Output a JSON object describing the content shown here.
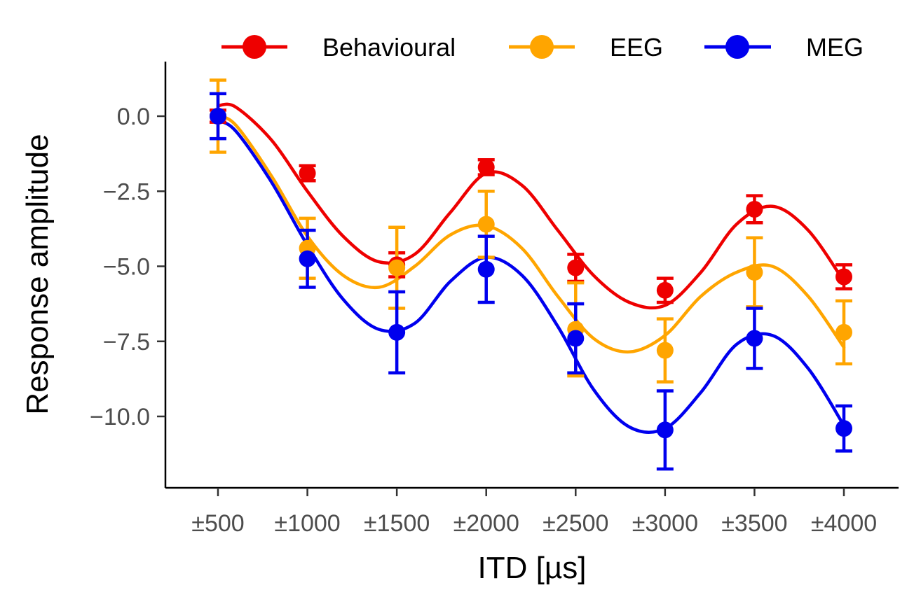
{
  "chart_data": {
    "type": "line",
    "title": "",
    "xlabel": "ITD [µs]",
    "ylabel": "Response amplitude",
    "categories": [
      "±500",
      "±1000",
      "±1500",
      "±2000",
      "±2500",
      "±3000",
      "±3500",
      "±4000"
    ],
    "x_values": [
      500,
      1000,
      1500,
      2000,
      2500,
      3000,
      3500,
      4000
    ],
    "xlim": [
      200,
      4300
    ],
    "ylim": [
      -12.3,
      1.8
    ],
    "yticks": [
      0,
      -2.5,
      -5,
      -7.5,
      -10
    ],
    "ytick_labels": [
      "0.0",
      "−2.5",
      "−5.0",
      "−7.5",
      "−10.0"
    ],
    "grid": false,
    "legend_position": "top",
    "series": [
      {
        "name": "Behavioural",
        "color": "#ee0000",
        "values": [
          0.0,
          -1.9,
          -4.95,
          -1.7,
          -5.05,
          -5.8,
          -3.1,
          -5.35
        ],
        "error": [
          0.2,
          0.25,
          0.4,
          0.25,
          0.45,
          0.4,
          0.45,
          0.4
        ]
      },
      {
        "name": "EEG",
        "color": "#ffa500",
        "values": [
          0.0,
          -4.4,
          -5.05,
          -3.6,
          -7.1,
          -7.8,
          -5.2,
          -7.2
        ],
        "error": [
          1.2,
          1.0,
          1.35,
          1.1,
          1.55,
          1.05,
          1.15,
          1.05
        ]
      },
      {
        "name": "MEG",
        "color": "#0000ee",
        "values": [
          0.0,
          -4.75,
          -7.2,
          -5.1,
          -7.4,
          -10.45,
          -7.4,
          -10.4
        ],
        "error": [
          0.75,
          0.95,
          1.35,
          1.1,
          1.15,
          1.3,
          1.0,
          0.75
        ]
      }
    ],
    "fit_curves": [
      {
        "name": "Behavioural",
        "color": "#ee0000",
        "points": [
          [
            500,
            0.35
          ],
          [
            600,
            0.3
          ],
          [
            800,
            -0.8
          ],
          [
            1000,
            -2.5
          ],
          [
            1200,
            -4.0
          ],
          [
            1400,
            -4.85
          ],
          [
            1600,
            -4.6
          ],
          [
            1800,
            -3.2
          ],
          [
            2000,
            -1.9
          ],
          [
            2200,
            -2.3
          ],
          [
            2400,
            -3.8
          ],
          [
            2600,
            -5.3
          ],
          [
            2800,
            -6.2
          ],
          [
            3000,
            -6.3
          ],
          [
            3200,
            -5.2
          ],
          [
            3400,
            -3.6
          ],
          [
            3600,
            -3.0
          ],
          [
            3800,
            -3.8
          ],
          [
            4000,
            -5.5
          ]
        ]
      },
      {
        "name": "EEG",
        "color": "#ffa500",
        "points": [
          [
            500,
            0.0
          ],
          [
            600,
            -0.3
          ],
          [
            800,
            -2.0
          ],
          [
            1000,
            -4.0
          ],
          [
            1200,
            -5.3
          ],
          [
            1400,
            -5.7
          ],
          [
            1600,
            -5.0
          ],
          [
            1800,
            -3.95
          ],
          [
            2000,
            -3.65
          ],
          [
            2200,
            -4.4
          ],
          [
            2400,
            -6.0
          ],
          [
            2600,
            -7.4
          ],
          [
            2800,
            -7.85
          ],
          [
            3000,
            -7.3
          ],
          [
            3200,
            -6.0
          ],
          [
            3400,
            -5.2
          ],
          [
            3600,
            -5.0
          ],
          [
            3800,
            -6.0
          ],
          [
            4000,
            -7.7
          ]
        ]
      },
      {
        "name": "MEG",
        "color": "#0000ee",
        "points": [
          [
            500,
            -0.15
          ],
          [
            600,
            -0.5
          ],
          [
            800,
            -2.2
          ],
          [
            1000,
            -4.3
          ],
          [
            1200,
            -6.1
          ],
          [
            1400,
            -7.1
          ],
          [
            1600,
            -6.9
          ],
          [
            1800,
            -5.5
          ],
          [
            2000,
            -4.7
          ],
          [
            2200,
            -5.3
          ],
          [
            2400,
            -7.0
          ],
          [
            2600,
            -9.1
          ],
          [
            2800,
            -10.35
          ],
          [
            3000,
            -10.4
          ],
          [
            3200,
            -9.2
          ],
          [
            3400,
            -7.6
          ],
          [
            3600,
            -7.3
          ],
          [
            3800,
            -8.4
          ],
          [
            4000,
            -10.3
          ]
        ]
      }
    ]
  }
}
